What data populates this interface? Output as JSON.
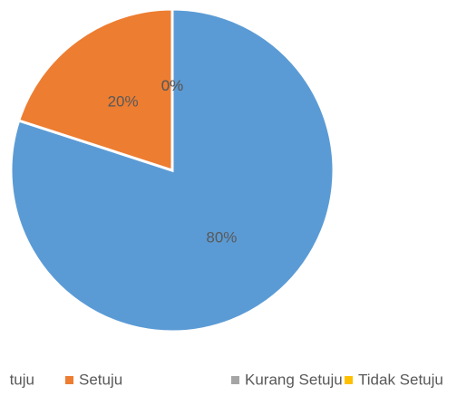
{
  "chart_data": {
    "type": "pie",
    "series": [
      {
        "name": "tuju",
        "color": "#5b9bd5",
        "values": [
          80
        ],
        "value_labels": [
          "80%"
        ]
      },
      {
        "name": "Setuju",
        "color": "#ed7d31",
        "values": [
          20
        ],
        "value_labels": [
          "20%"
        ]
      },
      {
        "name": "Kurang Setuju",
        "color": "#a5a5a5",
        "values": [
          0
        ],
        "value_labels": [
          "0%"
        ]
      },
      {
        "name": "Tidak Setuju",
        "color": "#ffc000",
        "values": [
          0
        ],
        "value_labels": [
          "0%"
        ]
      }
    ],
    "legend": "bottom"
  }
}
